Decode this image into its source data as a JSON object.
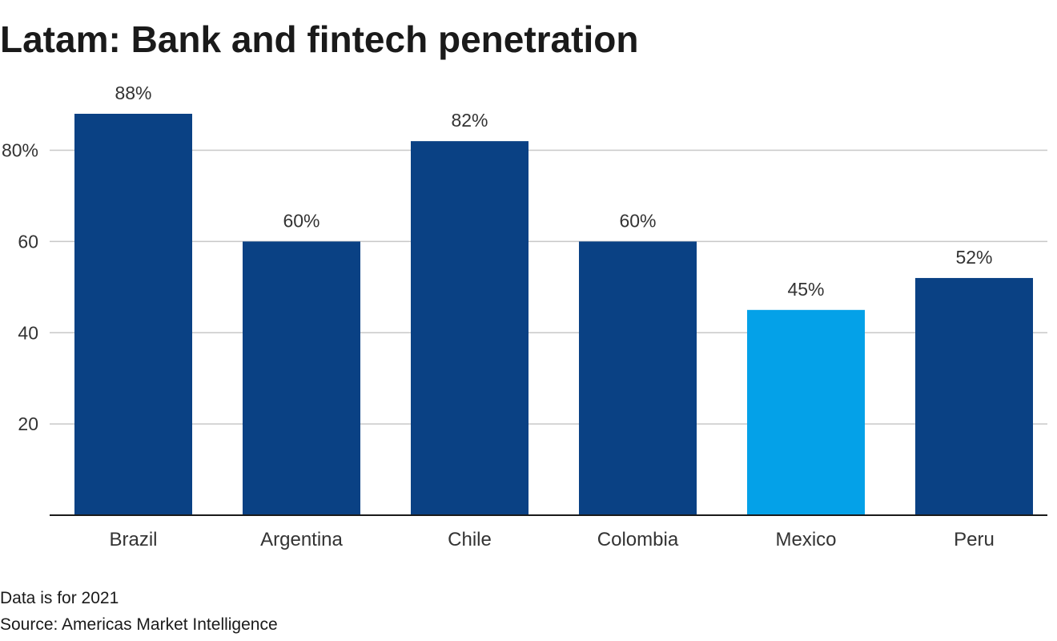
{
  "title": "Latam: Bank and fintech penetration",
  "footnote": "Data is for 2021",
  "source": "Source: Americas Market Intelligence",
  "colors": {
    "bar": "#0a4184",
    "highlight": "#04a1e8",
    "grid": "#c8c8c8",
    "axis": "#1a1a1a"
  },
  "chart_data": {
    "type": "bar",
    "categories": [
      "Brazil",
      "Argentina",
      "Chile",
      "Colombia",
      "Mexico",
      "Peru"
    ],
    "values": [
      88,
      60,
      82,
      60,
      45,
      52
    ],
    "data_labels": [
      "88%",
      "60%",
      "82%",
      "60%",
      "45%",
      "52%"
    ],
    "highlight": [
      "Mexico"
    ],
    "yticks": [
      20,
      40,
      60,
      80
    ],
    "ytick_labels": [
      "20",
      "40",
      "60",
      "80%"
    ],
    "ylim": [
      0,
      88
    ],
    "grid": true,
    "xlabel": "",
    "ylabel": ""
  }
}
